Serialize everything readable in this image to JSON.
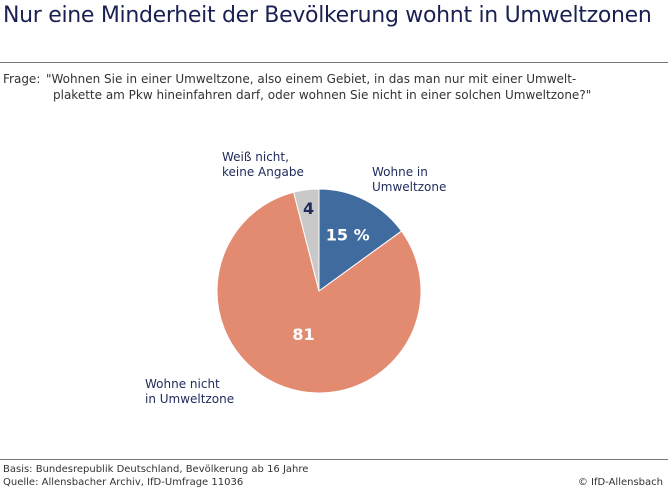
{
  "title": "Nur eine Minderheit der Bevölkerung wohnt in Umweltzonen",
  "question": {
    "prefix": "Frage:",
    "line1": "\"Wohnen Sie in einer Umweltzone, also einem Gebiet, in das man nur mit einer Umwelt-",
    "line2": "plakette am Pkw hineinfahren darf, oder wohnen Sie nicht in einer solchen Umweltzone?\""
  },
  "chart_data": {
    "type": "pie",
    "start": "12 o'clock, clockwise",
    "slices": [
      {
        "label": "Wohne in Umweltzone",
        "value": 15,
        "value_label": "15 %",
        "color": "#3f6b9f"
      },
      {
        "label": "Wohne nicht in Umweltzone",
        "value": 81,
        "value_label": "81",
        "color": "#e38b71"
      },
      {
        "label": "Weiß nicht, keine Angabe",
        "value": 4,
        "value_label": "4",
        "color": "#c9c9c9"
      }
    ]
  },
  "labels": {
    "in_1": "Wohne in",
    "in_2": "Umweltzone",
    "not_1": "Wohne nicht",
    "not_2": "in Umweltzone",
    "dk_1": "Weiß nicht,",
    "dk_2": "keine Angabe"
  },
  "footer": {
    "basis": "Basis: Bundesrepublik Deutschland, Bevölkerung ab 16 Jahre",
    "source": "Quelle: Allensbacher Archiv, IfD-Umfrage 11036",
    "copyright": "© IfD-Allensbach"
  }
}
